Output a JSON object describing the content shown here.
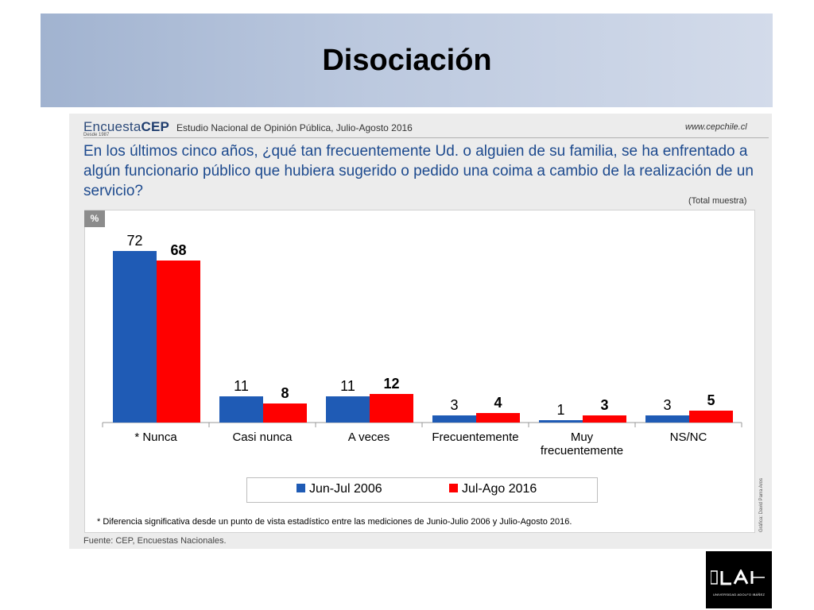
{
  "slide": {
    "title": "Disociación"
  },
  "header": {
    "brand_prefix": "Encuesta",
    "brand_suffix": "CEP",
    "brand_since": "Desde 1987",
    "study_title": "Estudio Nacional de Opinión Pública, Julio-Agosto 2016",
    "website": "www.cepchile.cl"
  },
  "question": "En los últimos cinco años, ¿qué tan frecuentemente Ud. o alguien de su familia, se ha enfrentado a algún funcionario público que hubiera sugerido o pedido una coima a cambio de la realización de un servicio?",
  "scope": "(Total muestra)",
  "unit_badge": "%",
  "chart_data": {
    "type": "bar",
    "categories": [
      "* Nunca",
      "Casi nunca",
      "A veces",
      "Frecuentemente",
      "Muy frecuentemente",
      "NS/NC"
    ],
    "category_lines": [
      [
        "* Nunca"
      ],
      [
        "Casi nunca"
      ],
      [
        "A veces"
      ],
      [
        "Frecuentemente"
      ],
      [
        "Muy",
        "frecuentemente"
      ],
      [
        "NS/NC"
      ]
    ],
    "series": [
      {
        "name": "Jun-Jul 2006",
        "values": [
          72,
          11,
          11,
          3,
          1,
          3
        ],
        "color": "#1f5bb5",
        "label_bold": false
      },
      {
        "name": "Jul-Ago 2016",
        "values": [
          68,
          8,
          12,
          4,
          3,
          5
        ],
        "color": "#ff0000",
        "label_bold": true
      }
    ],
    "ylim": [
      0,
      80
    ],
    "grid": false,
    "legend_position": "bottom"
  },
  "footnote": "* Diferencia significativa desde un punto de vista estadístico entre las mediciones de Junio-Julio 2006 y Julio-Agosto 2016.",
  "credit": "Gráfica: David Parra Aros",
  "source": "Fuente: CEP, Encuestas Nacionales.",
  "logo": {
    "mark": "UAI",
    "text": "UNIVERSIDAD ADOLFO IBÁÑEZ"
  }
}
